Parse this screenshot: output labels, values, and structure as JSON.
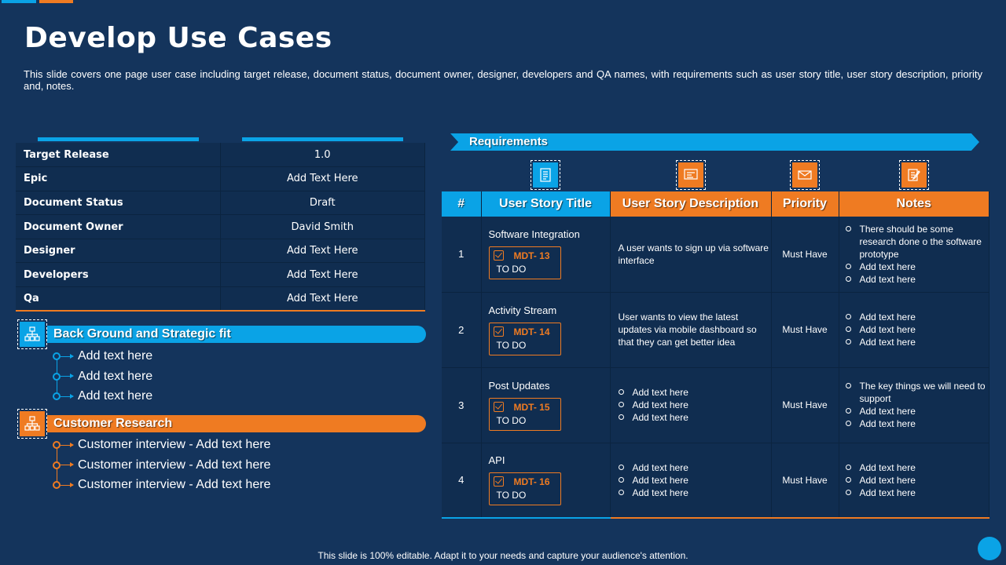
{
  "colors": {
    "background": "#14345c",
    "accent_blue": "#0aa3e6",
    "accent_orange": "#ef7b22",
    "cell_bg": "#102d50"
  },
  "title": "Develop Use Cases",
  "subtitle": "This slide covers one page user case including target release, document status, document owner, designer, developers and QA names, with requirements such as user story title, user story description, priority and, notes.",
  "info_table": [
    {
      "key": "Target Release",
      "value": "1.0"
    },
    {
      "key": "Epic",
      "value": "Add Text Here"
    },
    {
      "key": "Document Status",
      "value": "Draft"
    },
    {
      "key": "Document Owner",
      "value": "David Smith"
    },
    {
      "key": "Designer",
      "value": "Add Text Here"
    },
    {
      "key": "Developers",
      "value": "Add Text Here"
    },
    {
      "key": "Qa",
      "value": "Add Text Here"
    }
  ],
  "background": {
    "title": "Back Ground and Strategic fit",
    "icon": "org-chart-icon",
    "items": [
      "Add text here",
      "Add text here",
      "Add text here"
    ]
  },
  "research": {
    "title": "Customer Research",
    "icon": "org-chart-icon",
    "items": [
      "Customer interview - Add text here",
      "Customer interview - Add text here",
      "Customer interview - Add text here"
    ]
  },
  "requirements": {
    "banner": "Requirements",
    "column_icons": [
      "document-icon",
      "presentation-icon",
      "envelope-icon",
      "edit-note-icon"
    ],
    "headers": [
      "#",
      "User Story Title",
      "User Story Description",
      "Priority",
      "Notes"
    ],
    "rows": [
      {
        "num": "1",
        "title": "Software Integration",
        "code": "MDT- 13",
        "status": "TO DO",
        "description": "A user wants to sign up via software interface",
        "description_list": [],
        "priority": "Must Have",
        "notes": [
          "There should be some research done o the software prototype",
          "Add text here",
          "Add text here"
        ]
      },
      {
        "num": "2",
        "title": "Activity Stream",
        "code": "MDT- 14",
        "status": "TO DO",
        "description": "User wants to view the latest updates via mobile dashboard so that they can get better idea",
        "description_list": [],
        "priority": "Must Have",
        "notes": [
          "Add text here",
          "Add text here",
          "Add text here"
        ]
      },
      {
        "num": "3",
        "title": "Post Updates",
        "code": "MDT- 15",
        "status": "TO DO",
        "description": "",
        "description_list": [
          "Add text here",
          "Add text here",
          "Add text here"
        ],
        "priority": "Must Have",
        "notes": [
          "The key things we will need to support",
          "Add text here",
          "Add text here"
        ]
      },
      {
        "num": "4",
        "title": "API",
        "code": "MDT- 16",
        "status": "TO DO",
        "description": "",
        "description_list": [
          "Add text here",
          "Add text here",
          "Add text here"
        ],
        "priority": "Must Have",
        "notes": [
          "Add text here",
          "Add text here",
          "Add text here"
        ]
      }
    ]
  },
  "footer": "This slide is 100% editable. Adapt it to your needs and capture your audience's attention."
}
